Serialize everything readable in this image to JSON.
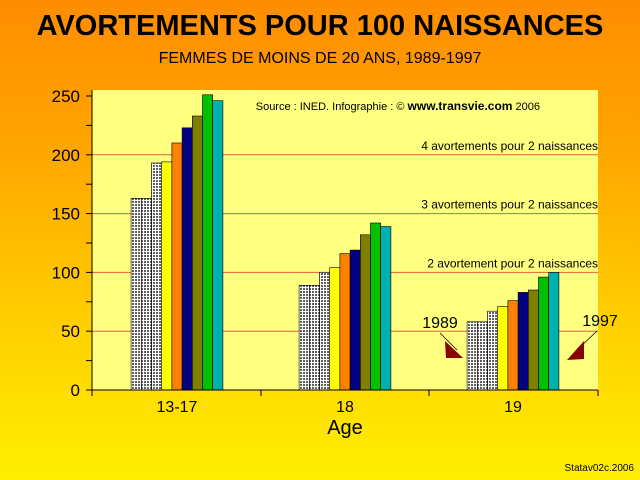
{
  "title": "AVORTEMENTS POUR 100 NAISSANCES",
  "subtitle": "FEMMES DE MOINS DE 20 ANS, 1989-1997",
  "source_prefix": "Source : INED. Infographie : © ",
  "source_site": "www.transvie.com",
  "source_year": " 2006",
  "footer": "Statav02c.2006",
  "colors": {
    "plot_bg": "#ffff80",
    "gridline": "#e06040",
    "arrow": "#8b0000",
    "bars": [
      "hatch",
      "hatch",
      "hatch",
      "#ffff00",
      "#ff8000",
      "#000080",
      "#808000",
      "#00c000",
      "#00b0b0"
    ]
  },
  "chart_data": {
    "type": "bar",
    "categories": [
      "13-17",
      "18",
      "19"
    ],
    "series": [
      {
        "values": [
          163,
          89,
          58
        ]
      },
      {
        "values": [
          163,
          89,
          58
        ]
      },
      {
        "values": [
          193,
          100,
          67
        ]
      },
      {
        "values": [
          194,
          104,
          71
        ]
      },
      {
        "values": [
          210,
          116,
          76
        ]
      },
      {
        "values": [
          223,
          119,
          83
        ]
      },
      {
        "values": [
          233,
          132,
          85
        ]
      },
      {
        "values": [
          251,
          142,
          96
        ]
      },
      {
        "values": [
          246,
          139,
          100
        ]
      }
    ],
    "xlabel": "Age",
    "ylabel": "",
    "ylim": [
      0,
      250
    ],
    "yticks": [
      0,
      50,
      100,
      150,
      200,
      250
    ],
    "reference_lines": [
      {
        "y": 200,
        "label": "4 avortements pour 2 naissances"
      },
      {
        "y": 150,
        "label": "3 avortements pour 2 naissances"
      },
      {
        "y": 100,
        "label": "2 avortement pour 2 naissances"
      },
      {
        "y": 50,
        "label": ""
      }
    ],
    "annotations": [
      {
        "text": "1989",
        "series_index": 0,
        "category_index": 2
      },
      {
        "text": "1997",
        "series_index": 8,
        "category_index": 2
      }
    ]
  }
}
